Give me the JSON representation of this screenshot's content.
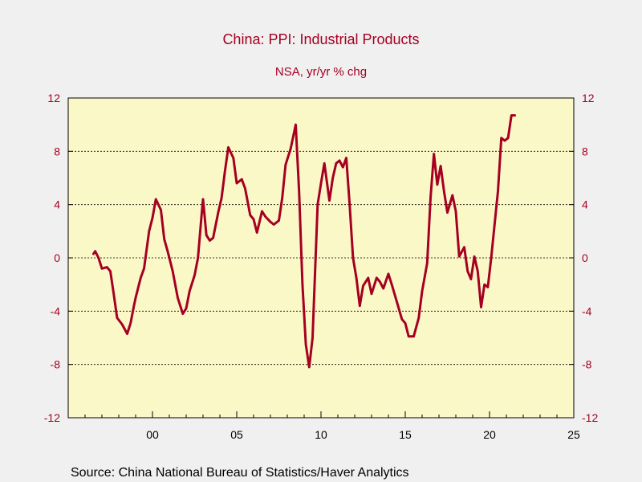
{
  "chart_data": {
    "type": "line",
    "title": "China: PPI: Industrial Products",
    "subtitle": "NSA, yr/yr % chg",
    "source": "Source:  China National Bureau of Statistics/Haver Analytics",
    "xlim": [
      1995,
      2025
    ],
    "ylim": [
      -12,
      12
    ],
    "y_ticks": [
      12,
      8,
      4,
      0,
      -4,
      -8,
      -12
    ],
    "y_tick_labels": [
      "12",
      "8",
      "4",
      "0",
      "-4",
      "-8",
      "-12"
    ],
    "x_ticks": [
      2000,
      2005,
      2010,
      2015,
      2020,
      2025
    ],
    "x_tick_labels": [
      "00",
      "05",
      "10",
      "15",
      "20",
      "25"
    ],
    "grid": "horizontal dotted at 8, 4, 0, -4, -8",
    "colors": {
      "line": "#a50021",
      "plot_bg": "#fbf8c8",
      "page_bg": "#f0f0f0",
      "text": "#a50021"
    },
    "series": [
      {
        "x": [
          1996.5,
          1996.6,
          1996.8,
          1997.0,
          1997.3,
          1997.5,
          1997.7,
          1997.9,
          1998.2,
          1998.5,
          1998.7,
          1998.9,
          1999.0,
          1999.3,
          1999.5,
          1999.8,
          2000.0,
          2000.2,
          2000.5,
          2000.7,
          2000.9,
          2001.0,
          2001.2,
          2001.5,
          2001.8,
          2002.0,
          2002.2,
          2002.5,
          2002.7,
          2002.9,
          2003.0,
          2003.2,
          2003.4,
          2003.6,
          2003.9,
          2004.1,
          2004.3,
          2004.5,
          2004.8,
          2005.0,
          2005.3,
          2005.5,
          2005.8,
          2006.0,
          2006.2,
          2006.5,
          2006.7,
          2007.0,
          2007.2,
          2007.5,
          2007.7,
          2007.9,
          2008.2,
          2008.5,
          2008.7,
          2008.9,
          2009.1,
          2009.3,
          2009.5,
          2009.8,
          2010.0,
          2010.2,
          2010.5,
          2010.7,
          2010.9,
          2011.1,
          2011.3,
          2011.5,
          2011.7,
          2011.9,
          2012.1,
          2012.3,
          2012.5,
          2012.8,
          2013.0,
          2013.3,
          2013.5,
          2013.7,
          2014.0,
          2014.2,
          2014.5,
          2014.8,
          2015.0,
          2015.2,
          2015.5,
          2015.8,
          2016.0,
          2016.3,
          2016.5,
          2016.7,
          2016.9,
          2017.1,
          2017.3,
          2017.5,
          2017.8,
          2018.0,
          2018.2,
          2018.5,
          2018.7,
          2018.9,
          2019.1,
          2019.3,
          2019.5,
          2019.7,
          2019.9,
          2020.1,
          2020.3,
          2020.5,
          2020.7,
          2020.9,
          2021.1,
          2021.3,
          2021.5
        ],
        "y": [
          0.3,
          0.5,
          0.0,
          -0.8,
          -0.7,
          -1.0,
          -2.7,
          -4.5,
          -5.0,
          -5.7,
          -4.9,
          -3.6,
          -3.0,
          -1.5,
          -0.8,
          2.0,
          3.0,
          4.4,
          3.6,
          1.4,
          0.5,
          0.0,
          -1.0,
          -3.0,
          -4.2,
          -3.8,
          -2.5,
          -1.3,
          0.0,
          3.0,
          4.4,
          1.7,
          1.3,
          1.5,
          3.4,
          4.5,
          6.5,
          8.3,
          7.5,
          5.6,
          5.9,
          5.2,
          3.2,
          2.9,
          1.9,
          3.5,
          3.1,
          2.7,
          2.5,
          2.8,
          4.5,
          7.0,
          8.2,
          10.0,
          5.0,
          -2.0,
          -6.5,
          -8.2,
          -6.0,
          4.0,
          5.6,
          7.1,
          4.3,
          6.0,
          7.1,
          7.3,
          6.8,
          7.5,
          4.0,
          0.0,
          -1.5,
          -3.6,
          -2.1,
          -1.5,
          -2.7,
          -1.5,
          -1.8,
          -2.3,
          -1.2,
          -2.0,
          -3.3,
          -4.6,
          -4.9,
          -5.9,
          -5.9,
          -4.5,
          -2.5,
          -0.4,
          4.5,
          7.8,
          5.5,
          6.9,
          5.0,
          3.4,
          4.7,
          3.5,
          0.1,
          0.8,
          -1.0,
          -1.6,
          0.1,
          -1.0,
          -3.7,
          -2.0,
          -2.2,
          0.0,
          2.5,
          5.0,
          9.0,
          8.8,
          9.0,
          10.7,
          10.7
        ]
      }
    ]
  }
}
